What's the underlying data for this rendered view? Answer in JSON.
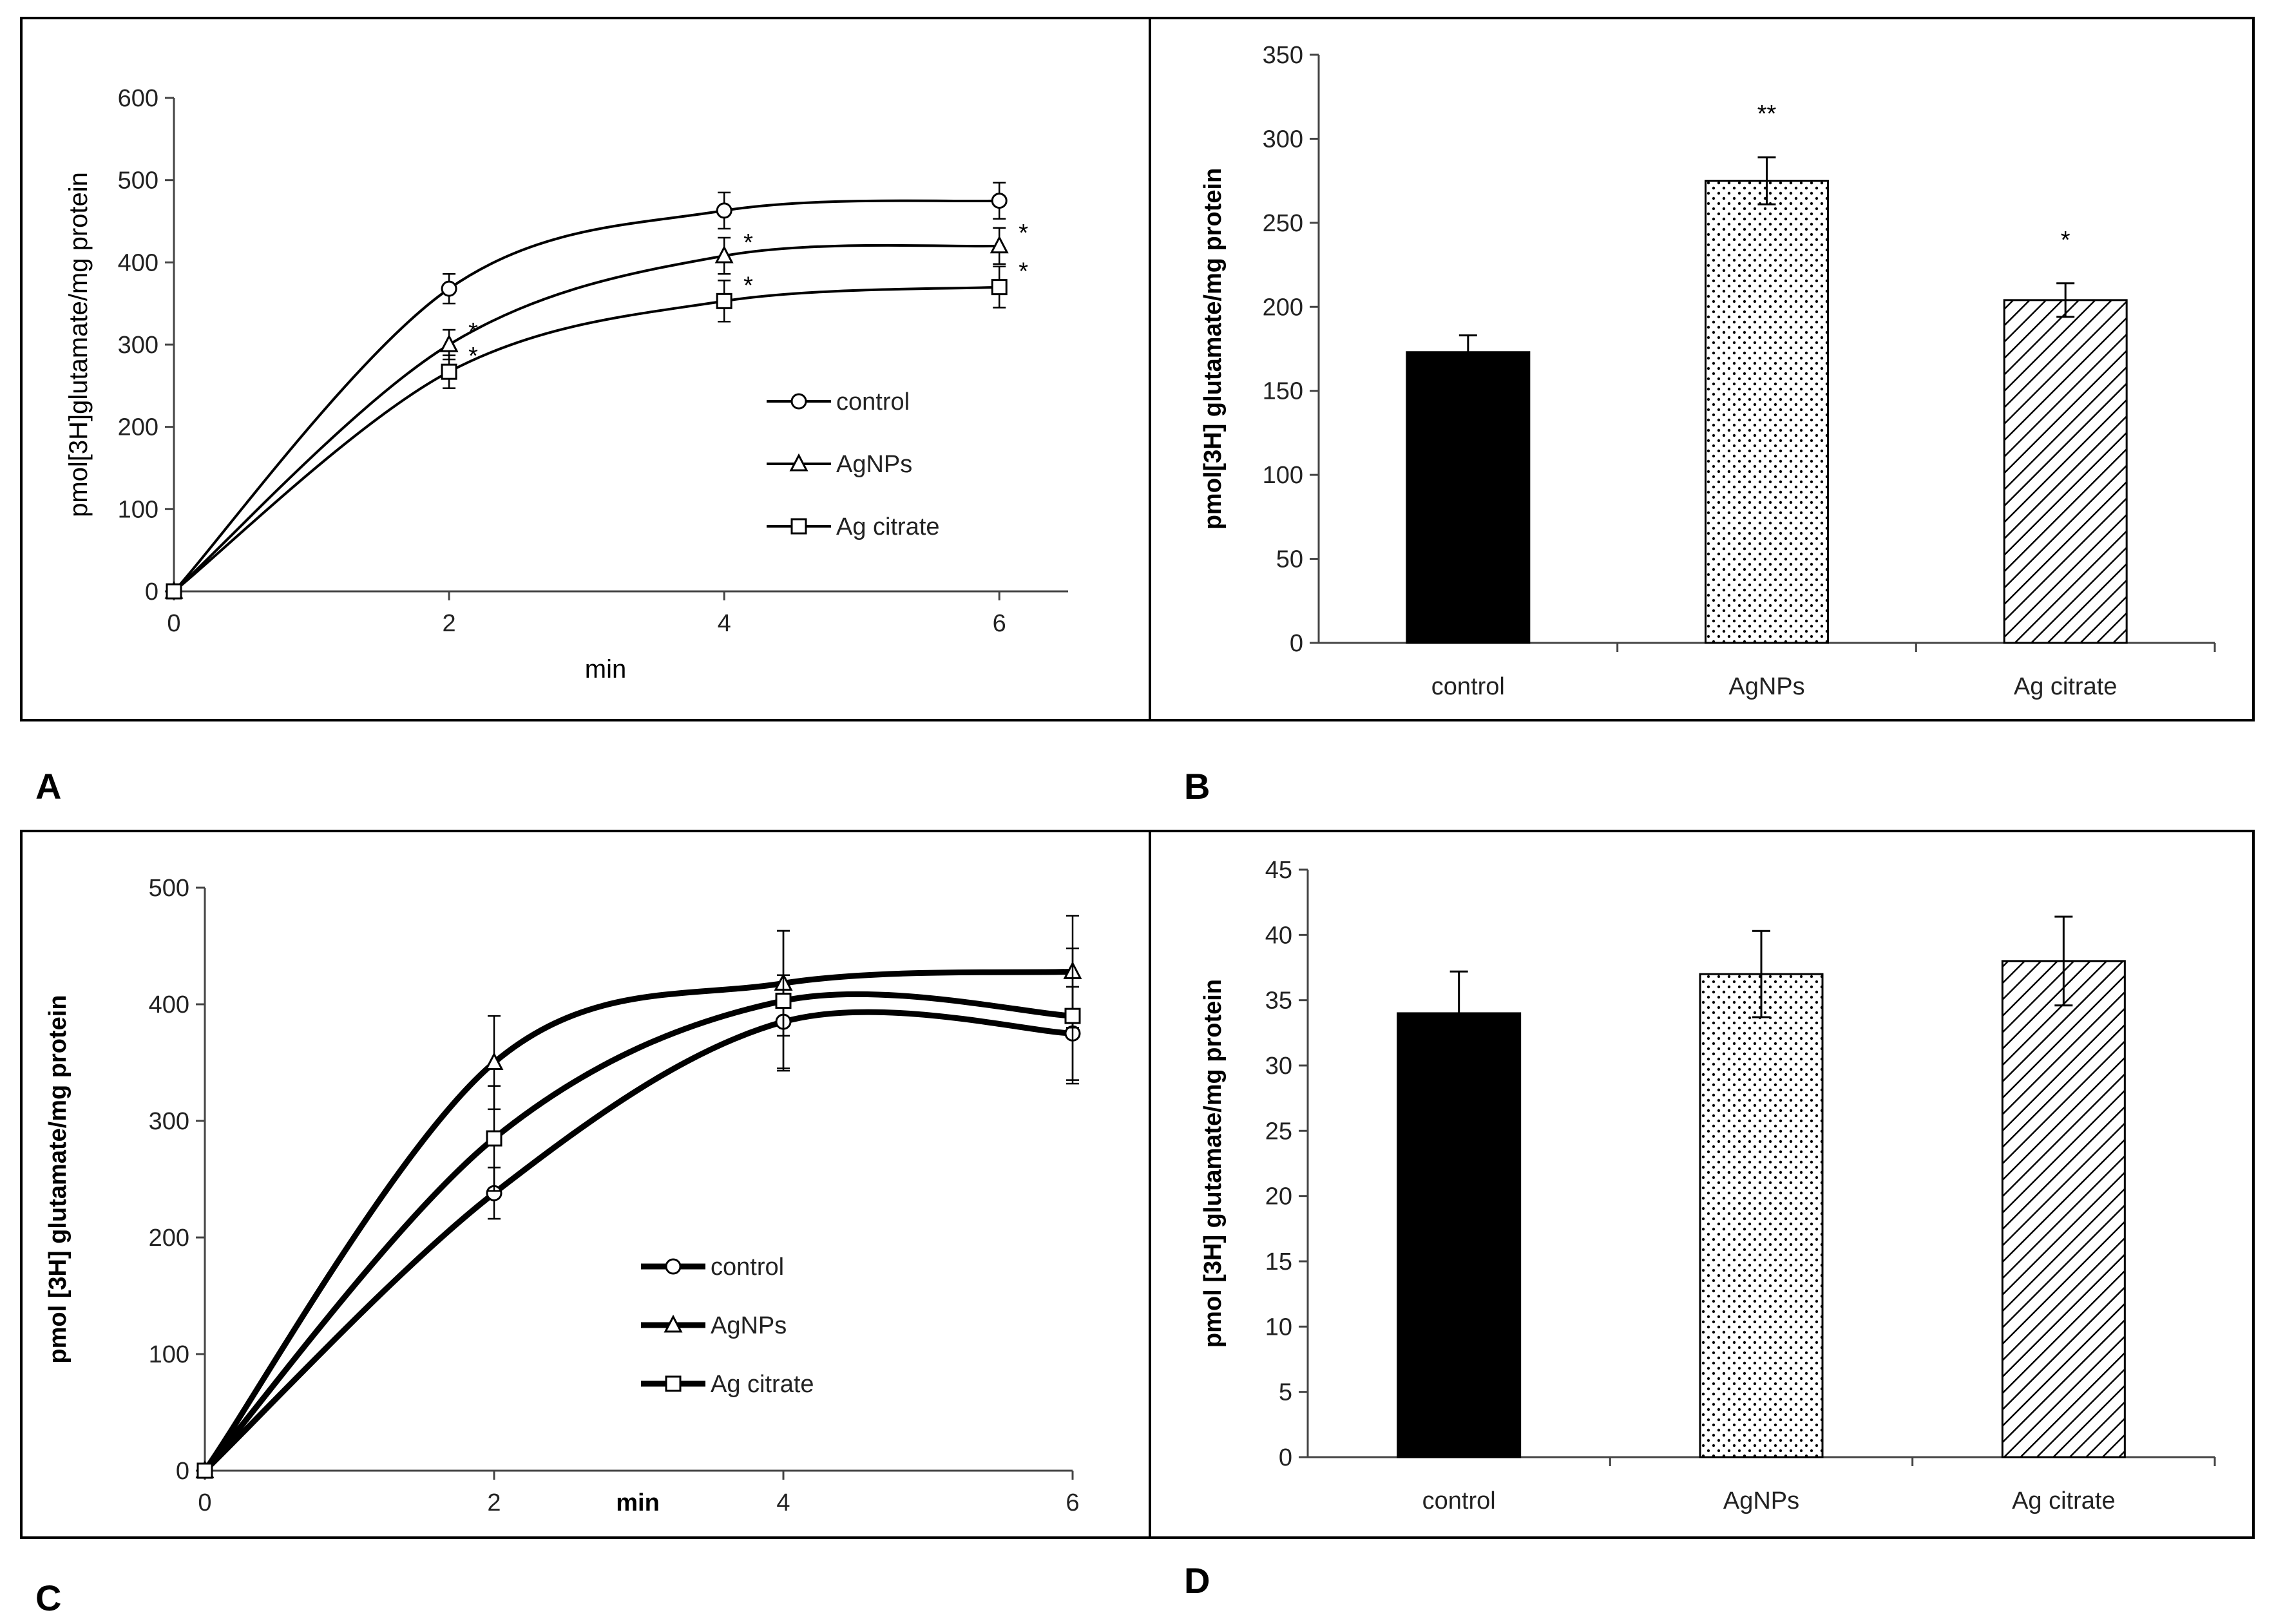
{
  "panel_labels": {
    "A": "A",
    "B": "B",
    "C": "C",
    "D": "D"
  },
  "colors": {
    "line": "#000000",
    "bar_solid": "#000000",
    "bar_edge": "#000000",
    "background": "#ffffff"
  },
  "chart_data": [
    {
      "id": "A",
      "type": "line",
      "x": [
        0,
        2,
        4,
        6
      ],
      "xlim": [
        0,
        6.5
      ],
      "xticks": [
        0,
        2,
        4,
        6
      ],
      "ylim": [
        0,
        600
      ],
      "yticks": [
        0,
        100,
        200,
        300,
        400,
        500,
        600
      ],
      "xlabel": "min",
      "ylabel": "pmol[3H]glutamate/mg protein",
      "legend": {
        "position": "center-right"
      },
      "series": [
        {
          "name": "control",
          "marker": "circle",
          "values": [
            0,
            368,
            463,
            475
          ],
          "errors": [
            0,
            18,
            22,
            22
          ],
          "sig": [
            "",
            "",
            "",
            ""
          ]
        },
        {
          "name": "AgNPs",
          "marker": "triangle",
          "values": [
            0,
            300,
            408,
            420
          ],
          "errors": [
            0,
            18,
            22,
            22
          ],
          "sig": [
            "",
            "*",
            "*",
            "*"
          ]
        },
        {
          "name": "Ag citrate",
          "marker": "square",
          "values": [
            0,
            267,
            353,
            370
          ],
          "errors": [
            0,
            20,
            25,
            25
          ],
          "sig": [
            "",
            "*",
            "*",
            "*"
          ]
        }
      ]
    },
    {
      "id": "B",
      "type": "bar",
      "categories": [
        "control",
        "AgNPs",
        "Ag citrate"
      ],
      "values": [
        173,
        275,
        204
      ],
      "errors": [
        10,
        14,
        10
      ],
      "sig": [
        "",
        "**",
        "*"
      ],
      "patterns": [
        "solid",
        "dots",
        "hatch"
      ],
      "ylim": [
        0,
        350
      ],
      "yticks": [
        0,
        50,
        100,
        150,
        200,
        250,
        300,
        350
      ],
      "ylabel": "pmol[3H] glutamate/mg protein"
    },
    {
      "id": "C",
      "type": "line",
      "x": [
        0,
        2,
        4,
        6
      ],
      "xlim": [
        0,
        6
      ],
      "xticks": [
        0,
        2,
        4,
        6
      ],
      "ylim": [
        0,
        500
      ],
      "yticks": [
        0,
        100,
        200,
        300,
        400,
        500
      ],
      "xlabel": "min",
      "ylabel": "pmol [3H] glutamate/mg protein",
      "legend": {
        "position": "center"
      },
      "series": [
        {
          "name": "control",
          "marker": "circle",
          "values": [
            0,
            238,
            385,
            375
          ],
          "errors": [
            0,
            22,
            40,
            40
          ]
        },
        {
          "name": "AgNPs",
          "marker": "triangle",
          "values": [
            0,
            350,
            418,
            428
          ],
          "errors": [
            0,
            40,
            45,
            48
          ]
        },
        {
          "name": "Ag citrate",
          "marker": "square",
          "values": [
            0,
            285,
            403,
            390
          ],
          "errors": [
            0,
            45,
            60,
            58
          ]
        }
      ]
    },
    {
      "id": "D",
      "type": "bar",
      "categories": [
        "control",
        "AgNPs",
        "Ag citrate"
      ],
      "values": [
        34,
        37,
        38
      ],
      "errors": [
        3.2,
        3.3,
        3.4
      ],
      "sig": [
        "",
        "",
        ""
      ],
      "patterns": [
        "solid",
        "dots",
        "hatch"
      ],
      "ylim": [
        0,
        45
      ],
      "yticks": [
        0,
        5,
        10,
        15,
        20,
        25,
        30,
        35,
        40,
        45
      ],
      "ylabel": "pmol [3H] glutamate/mg protein"
    }
  ]
}
